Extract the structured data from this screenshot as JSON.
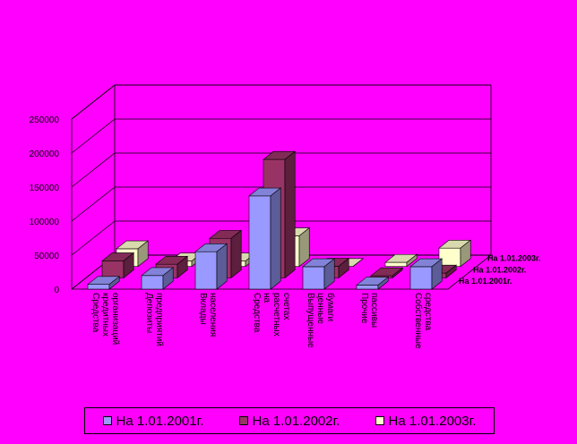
{
  "chart_data": {
    "type": "bar",
    "subtype": "3d-clustered-depth",
    "title": "",
    "xlabel": "",
    "ylabel": "",
    "ylim": [
      0,
      250000
    ],
    "ytick_labels": [
      "0",
      "50000",
      "100000",
      "150000",
      "200000",
      "250000"
    ],
    "grid": true,
    "legend_position": "bottom",
    "categories": [
      "Средства кредитных организаций",
      "Депозиты предприятий",
      "Вклады населения",
      "Средства на расчетных счетах",
      "Выпущенные ценные бумаги",
      "Прочие пассивы",
      "Собственные средства"
    ],
    "series": [
      {
        "name": "На 1.01.2001г.",
        "color": "#9999ff",
        "values": [
          7000,
          20000,
          55000,
          137000,
          33000,
          6000,
          33000
        ]
      },
      {
        "name": "На 1.01.2002г.",
        "color": "#993366",
        "values": [
          25000,
          20000,
          58000,
          174000,
          17000,
          3000,
          7000
        ]
      },
      {
        "name": "На 1.01.2003г.",
        "color": "#ffffcc",
        "values": [
          26000,
          8000,
          8000,
          45000,
          0,
          6000,
          27000
        ]
      }
    ]
  },
  "legend": {
    "items": [
      "На 1.01.2001г.",
      "На 1.01.2002г.",
      "На 1.01.2003г."
    ]
  }
}
